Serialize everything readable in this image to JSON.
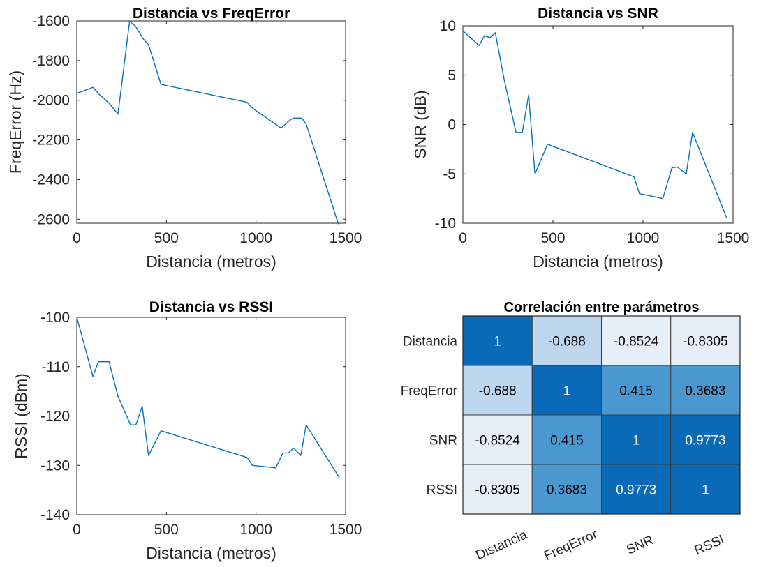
{
  "chart_data": [
    {
      "type": "line",
      "title": "Distancia vs FreqError",
      "xlabel": "Distancia (metros)",
      "ylabel": "FreqError (Hz)",
      "xlim": [
        0,
        1500
      ],
      "ylim": [
        -2620,
        -1600
      ],
      "xticks": [
        0,
        500,
        1000,
        1500
      ],
      "yticks": [
        -1600,
        -1800,
        -2000,
        -2200,
        -2400,
        -2600
      ],
      "grid": false,
      "color": "#0072BD",
      "series": [
        {
          "x": [
            0,
            90,
            130,
            150,
            180,
            230,
            295,
            330,
            370,
            400,
            470,
            950,
            980,
            1140,
            1190,
            1210,
            1255,
            1280,
            1460
          ],
          "values": [
            -1965,
            -1935,
            -1975,
            -1990,
            -2015,
            -2070,
            -1600,
            -1630,
            -1690,
            -1720,
            -1920,
            -2010,
            -2040,
            -2140,
            -2100,
            -2090,
            -2090,
            -2120,
            -2625
          ]
        }
      ]
    },
    {
      "type": "line",
      "title": "Distancia vs SNR",
      "xlabel": "Distancia (metros)",
      "ylabel": "SNR (dB)",
      "xlim": [
        0,
        1500
      ],
      "ylim": [
        -10,
        10
      ],
      "xticks": [
        0,
        500,
        1000,
        1500
      ],
      "yticks": [
        10,
        5,
        0,
        -5,
        -10
      ],
      "grid": false,
      "color": "#0072BD",
      "series": [
        {
          "x": [
            0,
            90,
            120,
            150,
            180,
            230,
            295,
            330,
            365,
            400,
            470,
            950,
            980,
            1110,
            1160,
            1190,
            1240,
            1275,
            1465
          ],
          "values": [
            9.5,
            8,
            9,
            8.8,
            9.3,
            4.5,
            -0.8,
            -0.8,
            3,
            -5,
            -2,
            -5.3,
            -7,
            -7.5,
            -4.4,
            -4.3,
            -5,
            -0.8,
            -9.5
          ]
        }
      ]
    },
    {
      "type": "line",
      "title": "Distancia vs RSSI",
      "xlabel": "Distancia (metros)",
      "ylabel": "RSSI (dBm)",
      "xlim": [
        0,
        1500
      ],
      "ylim": [
        -140,
        -100
      ],
      "xticks": [
        0,
        500,
        1000,
        1500
      ],
      "yticks": [
        -100,
        -110,
        -120,
        -130,
        -140
      ],
      "grid": false,
      "color": "#0072BD",
      "series": [
        {
          "x": [
            0,
            90,
            120,
            180,
            230,
            300,
            330,
            365,
            400,
            470,
            950,
            980,
            1110,
            1150,
            1180,
            1210,
            1250,
            1280,
            1465
          ],
          "values": [
            -100,
            -112,
            -109,
            -109,
            -116,
            -121.8,
            -121.8,
            -118,
            -128,
            -123,
            -128.4,
            -130,
            -130.5,
            -127.5,
            -127.5,
            -126.5,
            -128,
            -121.8,
            -132.5
          ]
        }
      ]
    },
    {
      "type": "heatmap",
      "title": "Correlación entre parámetros",
      "rows": [
        "Distancia",
        "FreqError",
        "SNR",
        "RSSI"
      ],
      "columns": [
        "Distancia",
        "FreqError",
        "SNR",
        "RSSI"
      ],
      "values": [
        [
          "1",
          "-0.688",
          "-0.8524",
          "-0.8305"
        ],
        [
          "-0.688",
          "1",
          "0.415",
          "0.3683"
        ],
        [
          "-0.8524",
          "0.415",
          "1",
          "0.9773"
        ],
        [
          "-0.8305",
          "0.3683",
          "0.9773",
          "1"
        ]
      ],
      "colormap": [
        "#e6eef7",
        "#bdd7ee",
        "#4a98cf",
        "#0a6ab8"
      ]
    }
  ]
}
